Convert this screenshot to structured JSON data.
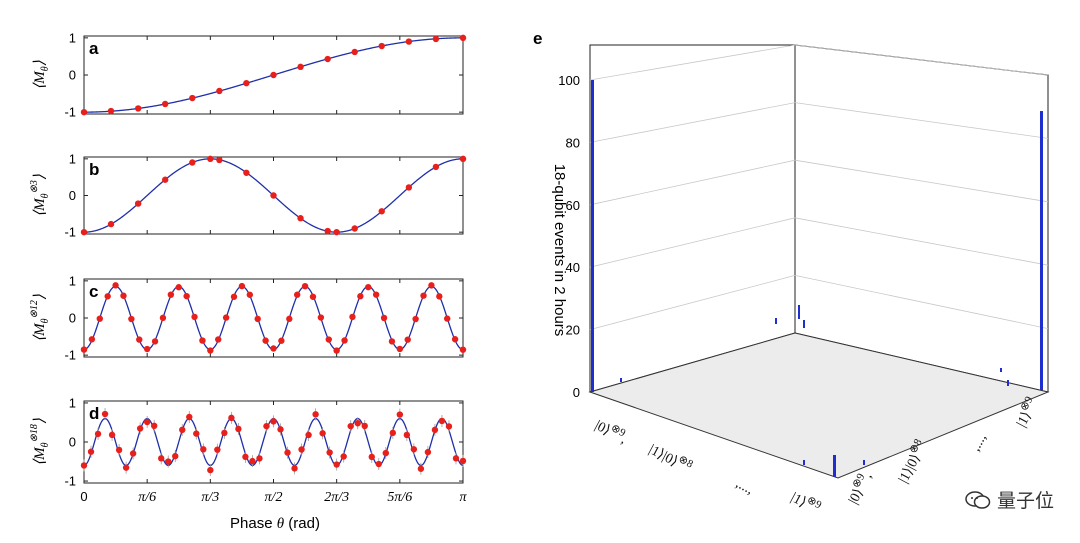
{
  "chart_data": [
    {
      "type": "scatter",
      "panel": "a",
      "ylabel": "⟨M_θ⟩",
      "n": 1,
      "ylim": [
        -1.05,
        1.05
      ],
      "yticks": [
        -1,
        0,
        1
      ],
      "xlabel": "Phase θ (rad)",
      "xticks": [
        "0",
        "π/6",
        "π/3",
        "π/2",
        "2π/3",
        "5π/6",
        "π"
      ],
      "xlim_rad": [
        0,
        3.14159
      ],
      "series": [
        {
          "style": "fit",
          "color": "#1f2fa8"
        },
        {
          "style": "data",
          "color": "#e8201c",
          "points": [
            [
              0,
              -1.0
            ],
            [
              0.224,
              -0.97
            ],
            [
              0.449,
              -0.9
            ],
            [
              0.673,
              -0.78
            ],
            [
              0.898,
              -0.62
            ],
            [
              1.122,
              -0.43
            ],
            [
              1.346,
              -0.22
            ],
            [
              1.571,
              0.0
            ],
            [
              1.795,
              0.22
            ],
            [
              2.02,
              0.43
            ],
            [
              2.244,
              0.62
            ],
            [
              2.468,
              0.78
            ],
            [
              2.693,
              0.9
            ],
            [
              2.917,
              0.97
            ],
            [
              3.142,
              1.0
            ]
          ]
        }
      ]
    },
    {
      "type": "scatter",
      "panel": "b",
      "ylabel": "⟨M_θ^⊗3⟩",
      "n": 3,
      "ylim": [
        -1.05,
        1.05
      ],
      "yticks": [
        -1,
        0,
        1
      ],
      "series": [
        {
          "style": "fit",
          "color": "#1f2fa8"
        },
        {
          "style": "data",
          "color": "#e8201c",
          "points": [
            [
              0,
              -1.0
            ],
            [
              0.224,
              -0.78
            ],
            [
              0.449,
              -0.22
            ],
            [
              0.673,
              0.43
            ],
            [
              0.898,
              0.9
            ],
            [
              1.047,
              1.0
            ],
            [
              1.122,
              0.97
            ],
            [
              1.346,
              0.62
            ],
            [
              1.571,
              0.0
            ],
            [
              1.795,
              -0.62
            ],
            [
              2.02,
              -0.97
            ],
            [
              2.094,
              -1.0
            ],
            [
              2.244,
              -0.9
            ],
            [
              2.468,
              -0.43
            ],
            [
              2.693,
              0.22
            ],
            [
              2.917,
              0.78
            ],
            [
              3.142,
              1.0
            ]
          ]
        }
      ]
    },
    {
      "type": "scatter",
      "panel": "c",
      "ylabel": "⟨M_θ^⊗12⟩",
      "n": 12,
      "amplitude": 0.85,
      "ylim": [
        -1.05,
        1.05
      ],
      "yticks": [
        -1,
        0,
        1
      ],
      "series": [
        {
          "style": "fit",
          "color": "#1f2fa8"
        },
        {
          "style": "data",
          "color": "#e8201c",
          "points_per_period": 8
        }
      ]
    },
    {
      "type": "scatter",
      "panel": "d",
      "ylabel": "⟨M_θ^⊗18⟩",
      "n": 18,
      "amplitude": 0.6,
      "ylim": [
        -1.05,
        1.05
      ],
      "yticks": [
        -1,
        0,
        1
      ],
      "series": [
        {
          "style": "fit",
          "color": "#1f2fa8"
        },
        {
          "style": "data",
          "color": "#e8201c",
          "points_per_period": 6,
          "error_bars": true
        }
      ]
    },
    {
      "type": "bar",
      "panel": "e",
      "dimension": "3d",
      "zlabel": "18-qubit events in 2 hours",
      "zticks": [
        0,
        20,
        40,
        60,
        80,
        100
      ],
      "zlim": [
        0,
        100
      ],
      "tall_bars": [
        {
          "state": "|0⟩⊗18",
          "value": 100
        },
        {
          "state": "|1⟩⊗18",
          "value": 88
        }
      ],
      "axis_labels_front": [
        "|0⟩⊗9,",
        "|1⟩|0⟩⊗8",
        ",...,",
        "|1⟩⊗9"
      ],
      "axis_labels_right": [
        "|0⟩⊗9,",
        "|1⟩|0⟩⊗8",
        ",...,",
        "|1⟩⊗9"
      ],
      "bar_color": "#1f2fcf"
    }
  ],
  "watermark": {
    "text": "量子位"
  }
}
